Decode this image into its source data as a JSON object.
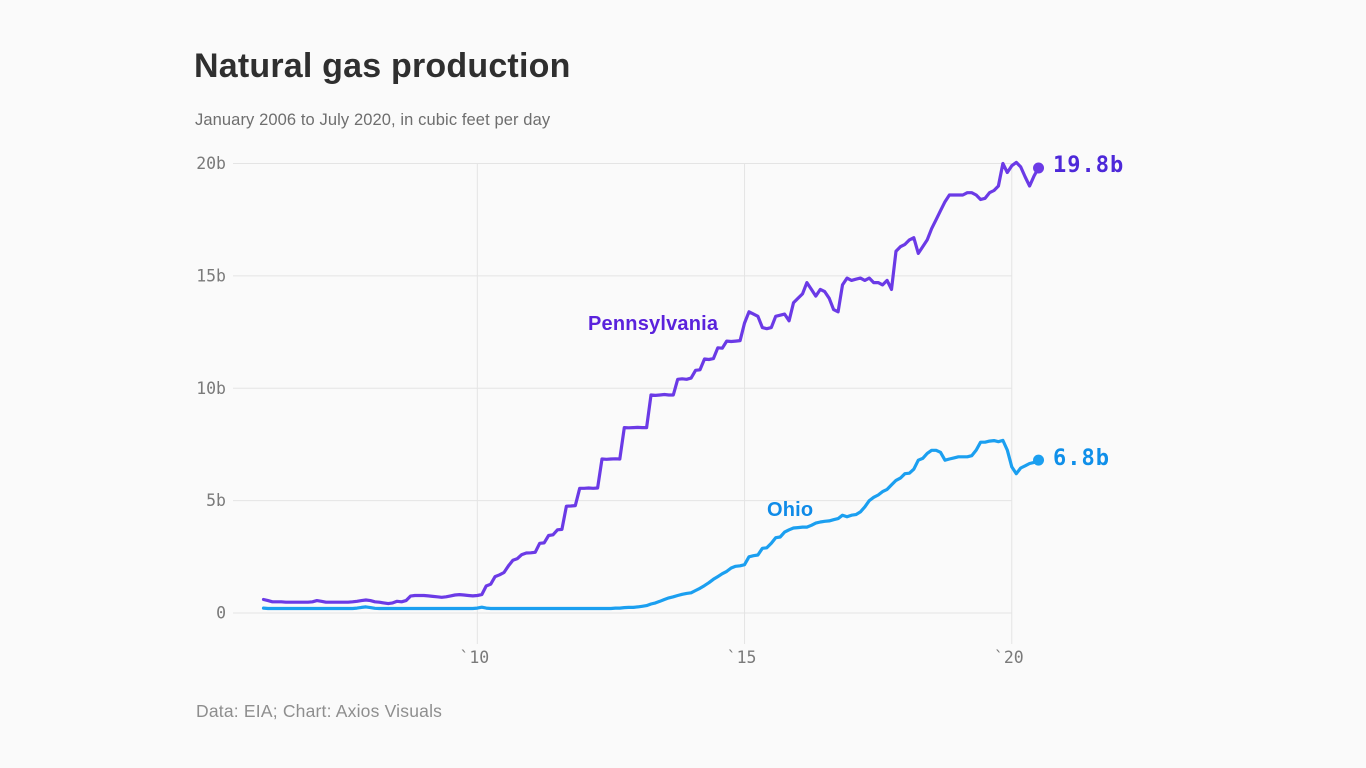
{
  "page": {
    "background_color": "#FAFAFA"
  },
  "header": {
    "title": "Natural gas production",
    "subtitle": "January 2006 to July 2020, in cubic feet per day"
  },
  "footer": {
    "credit": "Data: EIA; Chart: Axios Visuals"
  },
  "colors": {
    "pennsylvania_line": "#6B3AE6",
    "pennsylvania_label": "#5A22DC",
    "pennsylvania_value_label": "#4D28D9",
    "ohio_line": "#1B9FF0",
    "ohio_label": "#0F8BE8",
    "ohio_value_label": "#0F8FE9",
    "gridline": "#E4E4E4",
    "tick_text": "#7A7A7A"
  },
  "chart_data": {
    "type": "line",
    "title": "Natural gas production",
    "subtitle": "January 2006 to July 2020, in cubic feet per day",
    "unit": "billion cubic feet per day",
    "x_is_time": true,
    "x_start_year": 2006.0,
    "x_step_years": 0.0833333,
    "x_end_year": 2020.5,
    "xlim": [
      2006.0,
      2020.58
    ],
    "ylim": [
      0,
      20
    ],
    "grid": "horizontal-lines-and-vertical-year-ticks",
    "legend_position": "inline-labels",
    "yticks": [
      {
        "value": 0,
        "label": "0"
      },
      {
        "value": 5,
        "label": "5b"
      },
      {
        "value": 10,
        "label": "10b"
      },
      {
        "value": 15,
        "label": "15b"
      },
      {
        "value": 20,
        "label": "20b"
      }
    ],
    "xticks": [
      {
        "value": 2010,
        "label": "`10"
      },
      {
        "value": 2015,
        "label": "`15"
      },
      {
        "value": 2020,
        "label": "`20"
      }
    ],
    "series": [
      {
        "name": "Pennsylvania",
        "color": "#6B3AE6",
        "end_value": 19.8,
        "end_label": "19.8b",
        "values": [
          0.6,
          0.55,
          0.5,
          0.5,
          0.5,
          0.48,
          0.48,
          0.48,
          0.48,
          0.48,
          0.48,
          0.5,
          0.55,
          0.52,
          0.48,
          0.48,
          0.48,
          0.48,
          0.48,
          0.48,
          0.5,
          0.52,
          0.55,
          0.58,
          0.55,
          0.5,
          0.48,
          0.45,
          0.42,
          0.45,
          0.52,
          0.5,
          0.55,
          0.75,
          0.78,
          0.78,
          0.78,
          0.76,
          0.74,
          0.72,
          0.7,
          0.72,
          0.76,
          0.8,
          0.82,
          0.8,
          0.78,
          0.76,
          0.78,
          0.82,
          1.2,
          1.28,
          1.62,
          1.7,
          1.8,
          2.1,
          2.35,
          2.42,
          2.6,
          2.67,
          2.68,
          2.7,
          3.1,
          3.12,
          3.45,
          3.48,
          3.7,
          3.72,
          4.75,
          4.76,
          4.78,
          5.55,
          5.55,
          5.56,
          5.55,
          5.56,
          6.85,
          6.84,
          6.85,
          6.86,
          6.85,
          8.25,
          8.24,
          8.25,
          8.26,
          8.25,
          8.25,
          9.7,
          9.68,
          9.7,
          9.72,
          9.7,
          9.7,
          10.4,
          10.42,
          10.4,
          10.45,
          10.8,
          10.82,
          11.3,
          11.28,
          11.32,
          11.8,
          11.78,
          12.1,
          12.08,
          12.1,
          12.12,
          12.9,
          13.4,
          13.3,
          13.2,
          12.7,
          12.65,
          12.7,
          13.2,
          13.25,
          13.3,
          13.0,
          13.8,
          14.0,
          14.2,
          14.7,
          14.4,
          14.1,
          14.4,
          14.3,
          14.0,
          13.5,
          13.4,
          14.6,
          14.9,
          14.8,
          14.85,
          14.9,
          14.8,
          14.9,
          14.7,
          14.7,
          14.6,
          14.8,
          14.4,
          16.1,
          16.3,
          16.4,
          16.6,
          16.7,
          16.0,
          16.3,
          16.6,
          17.1,
          17.5,
          17.9,
          18.3,
          18.6,
          18.6,
          18.6,
          18.6,
          18.7,
          18.7,
          18.6,
          18.4,
          18.45,
          18.7,
          18.8,
          19.0,
          20.0,
          19.6,
          19.9,
          20.05,
          19.85,
          19.4,
          19.0,
          19.45,
          19.8
        ]
      },
      {
        "name": "Ohio",
        "color": "#1B9FF0",
        "end_value": 6.8,
        "end_label": "6.8b",
        "values": [
          0.22,
          0.2,
          0.2,
          0.2,
          0.2,
          0.2,
          0.2,
          0.2,
          0.2,
          0.2,
          0.2,
          0.2,
          0.2,
          0.2,
          0.2,
          0.2,
          0.2,
          0.2,
          0.2,
          0.2,
          0.2,
          0.22,
          0.25,
          0.27,
          0.24,
          0.21,
          0.2,
          0.2,
          0.2,
          0.2,
          0.2,
          0.2,
          0.2,
          0.2,
          0.2,
          0.2,
          0.2,
          0.2,
          0.2,
          0.2,
          0.2,
          0.2,
          0.2,
          0.2,
          0.2,
          0.2,
          0.2,
          0.2,
          0.22,
          0.26,
          0.22,
          0.2,
          0.2,
          0.2,
          0.2,
          0.2,
          0.2,
          0.2,
          0.2,
          0.2,
          0.2,
          0.2,
          0.2,
          0.2,
          0.2,
          0.2,
          0.2,
          0.2,
          0.2,
          0.2,
          0.2,
          0.2,
          0.2,
          0.2,
          0.2,
          0.2,
          0.2,
          0.2,
          0.2,
          0.22,
          0.22,
          0.24,
          0.25,
          0.25,
          0.27,
          0.3,
          0.33,
          0.4,
          0.45,
          0.52,
          0.6,
          0.67,
          0.72,
          0.78,
          0.83,
          0.87,
          0.9,
          1.0,
          1.1,
          1.22,
          1.35,
          1.5,
          1.62,
          1.75,
          1.85,
          2.0,
          2.08,
          2.1,
          2.15,
          2.5,
          2.55,
          2.58,
          2.88,
          2.9,
          3.1,
          3.35,
          3.38,
          3.6,
          3.7,
          3.78,
          3.8,
          3.82,
          3.82,
          3.9,
          4.0,
          4.05,
          4.08,
          4.1,
          4.15,
          4.2,
          4.35,
          4.28,
          4.35,
          4.38,
          4.5,
          4.72,
          5.0,
          5.15,
          5.25,
          5.4,
          5.5,
          5.7,
          5.9,
          6.0,
          6.2,
          6.22,
          6.4,
          6.8,
          6.88,
          7.1,
          7.24,
          7.24,
          7.15,
          6.8,
          6.85,
          6.9,
          6.95,
          6.95,
          6.95,
          7.0,
          7.25,
          7.6,
          7.6,
          7.65,
          7.67,
          7.62,
          7.68,
          7.25,
          6.5,
          6.2,
          6.45,
          6.55,
          6.65,
          6.7,
          6.8
        ]
      }
    ]
  }
}
